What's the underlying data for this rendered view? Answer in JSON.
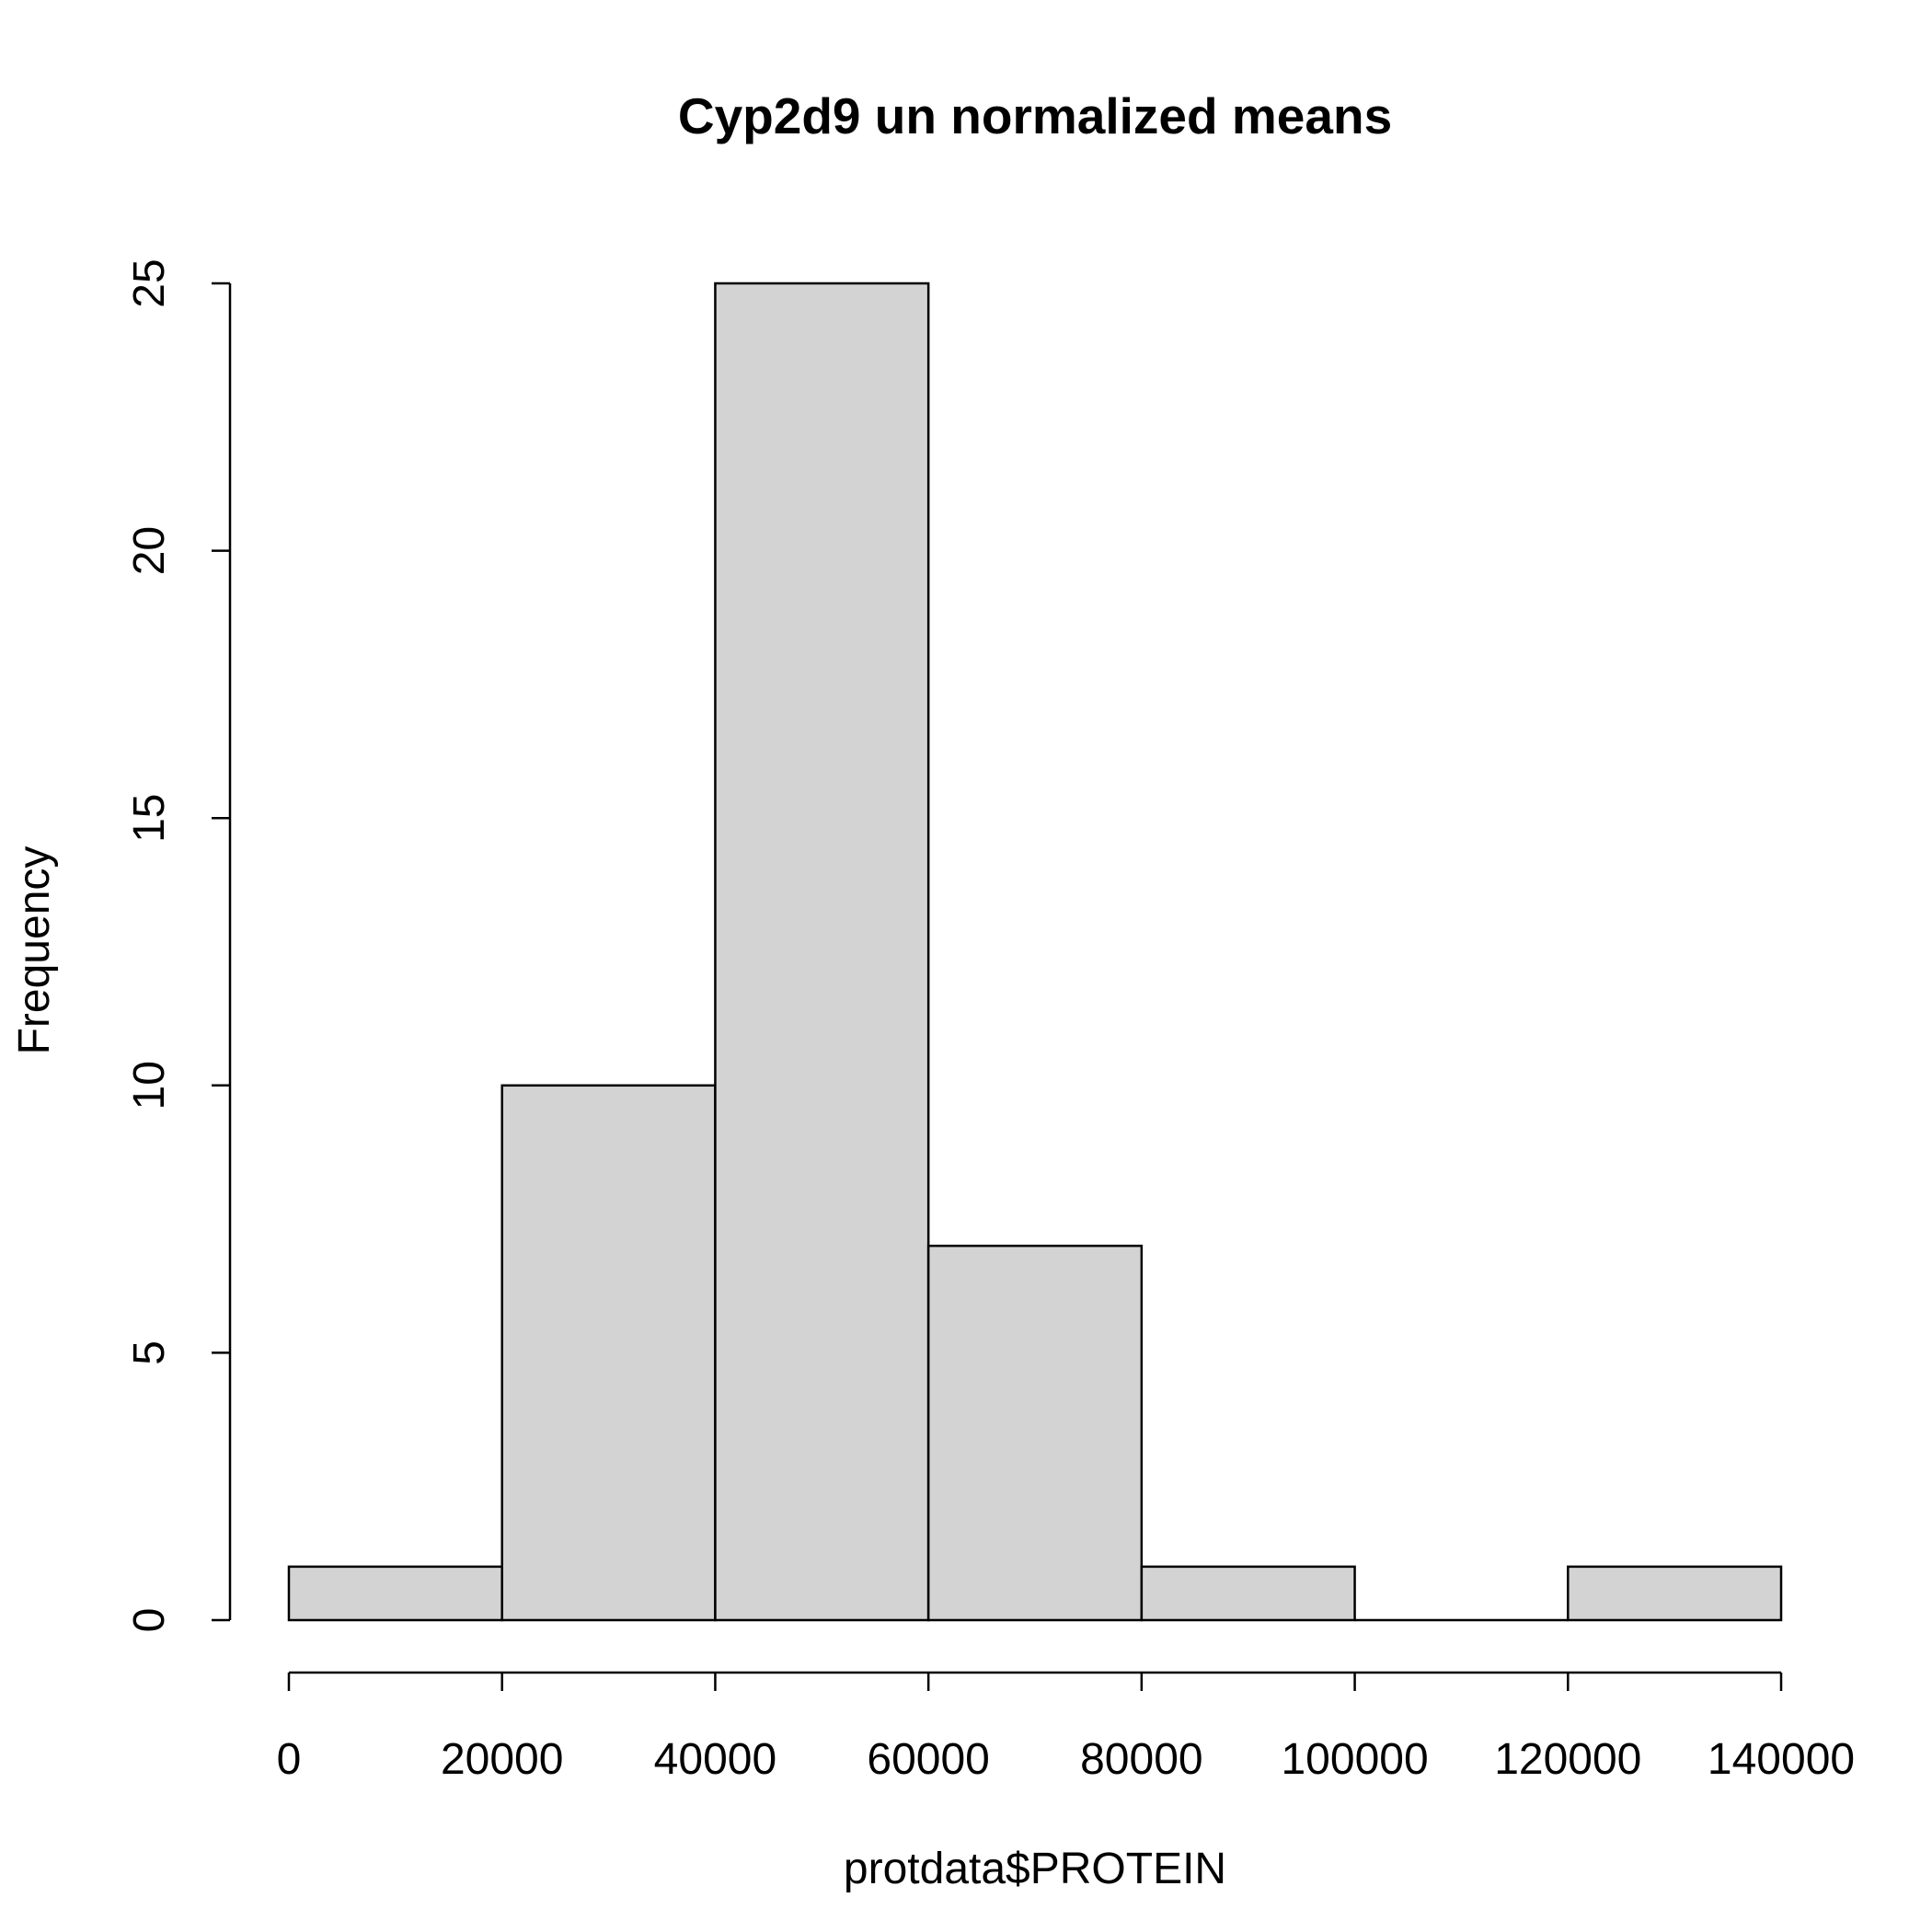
{
  "chart_data": {
    "type": "histogram",
    "title": "Cyp2d9 un normalized means",
    "xlabel": "protdata$PROTEIN",
    "ylabel": "Frequency",
    "bins": [
      {
        "from": 0,
        "to": 20000,
        "count": 1
      },
      {
        "from": 20000,
        "to": 40000,
        "count": 10
      },
      {
        "from": 40000,
        "to": 60000,
        "count": 25
      },
      {
        "from": 60000,
        "to": 80000,
        "count": 7
      },
      {
        "from": 80000,
        "to": 100000,
        "count": 1
      },
      {
        "from": 100000,
        "to": 120000,
        "count": 0
      },
      {
        "from": 120000,
        "to": 140000,
        "count": 1
      }
    ],
    "xticks": [
      0,
      20000,
      40000,
      60000,
      80000,
      100000,
      120000,
      140000
    ],
    "yticks": [
      0,
      5,
      10,
      15,
      20,
      25
    ],
    "xlim": [
      0,
      140000
    ],
    "ylim": [
      0,
      25
    ],
    "grid": false,
    "bar_fill": "#d3d3d3",
    "bar_stroke": "#000000"
  }
}
